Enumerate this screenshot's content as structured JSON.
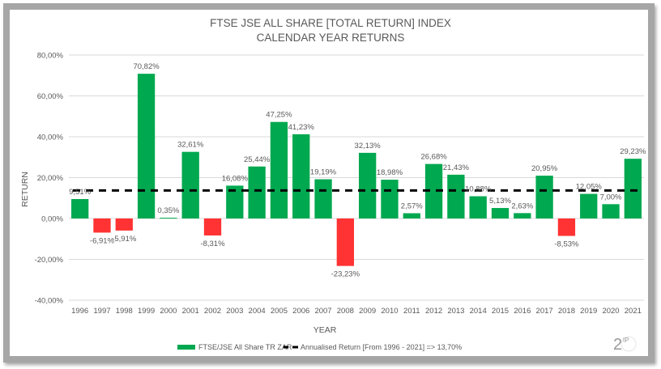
{
  "chart_data": {
    "type": "bar",
    "title": "FTSE JSE ALL SHARE [TOTAL RETURN] INDEX",
    "subtitle": "CALENDAR YEAR RETURNS",
    "xlabel": "YEAR",
    "ylabel": "RETURN",
    "ylim": [
      -40,
      80
    ],
    "yticks": [
      80,
      60,
      40,
      20,
      0,
      -20,
      -40
    ],
    "ytick_labels": [
      "80,00%",
      "60,00%",
      "40,00%",
      "20,00%",
      "0,00%",
      "-20,00%",
      "-40,00%"
    ],
    "grid": true,
    "legend_position": "bottom",
    "categories": [
      "1996",
      "1997",
      "1998",
      "1999",
      "2000",
      "2001",
      "2002",
      "2003",
      "2004",
      "2005",
      "2006",
      "2007",
      "2008",
      "2009",
      "2010",
      "2011",
      "2012",
      "2013",
      "2014",
      "2015",
      "2016",
      "2017",
      "2018",
      "2019",
      "2020",
      "2021"
    ],
    "series": [
      {
        "name": "FTSE/JSE All Share TR ZAR",
        "type": "bar",
        "values": [
          9.51,
          -6.91,
          -5.91,
          70.82,
          0.35,
          32.61,
          -8.31,
          16.08,
          25.44,
          47.25,
          41.23,
          19.19,
          -23.23,
          32.13,
          18.98,
          2.57,
          26.68,
          21.43,
          10.88,
          5.13,
          2.63,
          20.95,
          -8.53,
          12.05,
          7.0,
          29.23
        ],
        "labels": [
          "9,51%",
          "-6,91%",
          "-5,91%",
          "70,82%",
          "0,35%",
          "32,61%",
          "-8,31%",
          "16,08%",
          "25,44%",
          "47,25%",
          "41,23%",
          "19,19%",
          "-23,23%",
          "32,13%",
          "18,98%",
          "2,57%",
          "26,68%",
          "21,43%",
          "10,88%",
          "5,13%",
          "2,63%",
          "20,95%",
          "-8,53%",
          "12,05%",
          "7,00%",
          "29,23%"
        ],
        "positive_color": "#00a84f",
        "negative_color": "#ff3333"
      },
      {
        "name": "Annualised Return [From 1996 - 2021] => 13,70%",
        "type": "line",
        "style": "dashed",
        "value": 13.7,
        "color": "#000000"
      }
    ]
  },
  "branding": {
    "logo_text": "2",
    "logo_superscript": "IP"
  }
}
